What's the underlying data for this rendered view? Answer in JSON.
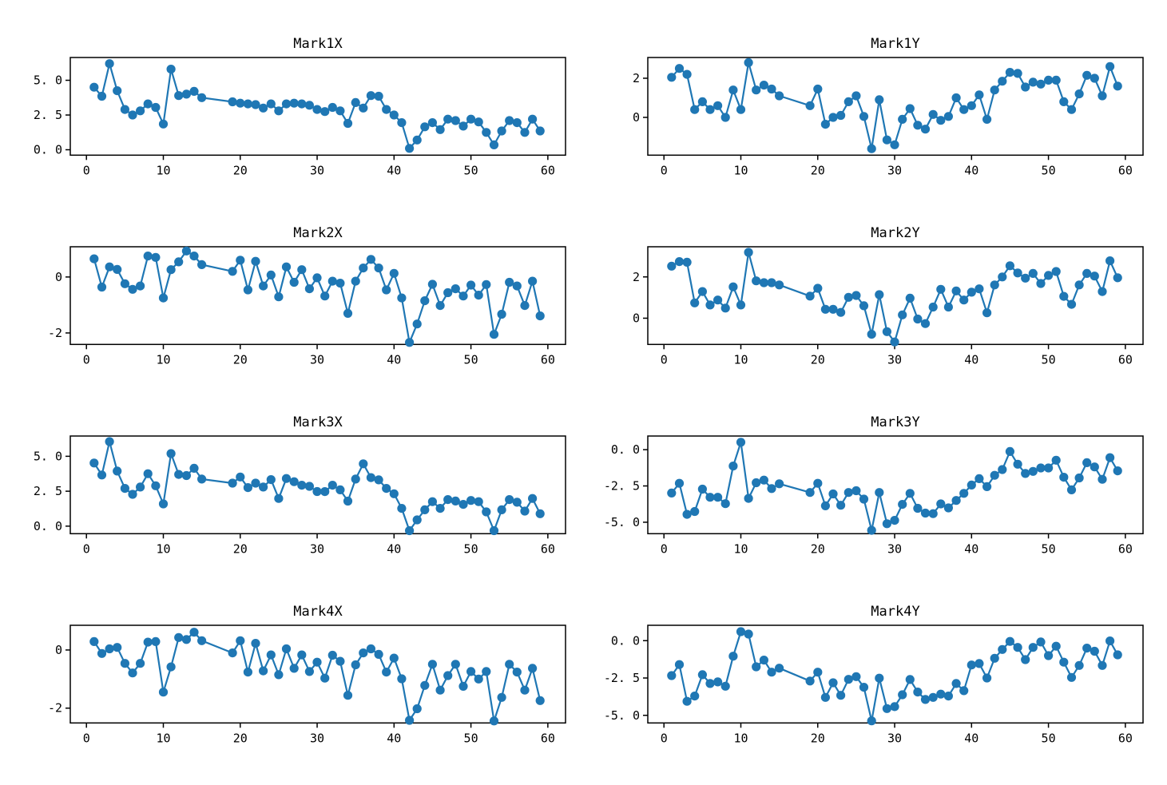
{
  "figure": {
    "background": "#ffffff",
    "line_color": "#1f77b4",
    "axis_color": "#000000",
    "text_color": "#000000"
  },
  "chart_data": [
    {
      "type": "line",
      "title": "Mark1X",
      "xlabel": "",
      "ylabel": "",
      "grid": false,
      "legend": null,
      "marker": "circle",
      "x": [
        1,
        2,
        3,
        4,
        5,
        6,
        7,
        8,
        9,
        10,
        11,
        12,
        13,
        14,
        15,
        19,
        20,
        21,
        22,
        23,
        24,
        25,
        26,
        27,
        28,
        29,
        30,
        31,
        32,
        33,
        34,
        35,
        36,
        37,
        38,
        39,
        40,
        41,
        42,
        43,
        44,
        45,
        46,
        47,
        48,
        49,
        50,
        51,
        52,
        53,
        54,
        55,
        56,
        57,
        58,
        59
      ],
      "y": [
        4.5,
        3.85,
        6.2,
        4.25,
        2.9,
        2.5,
        2.8,
        3.3,
        3.05,
        1.85,
        5.8,
        3.9,
        4.0,
        4.2,
        3.75,
        3.45,
        3.35,
        3.3,
        3.25,
        3.0,
        3.3,
        2.8,
        3.3,
        3.35,
        3.3,
        3.2,
        2.9,
        2.75,
        3.05,
        2.8,
        1.9,
        3.4,
        3.0,
        3.9,
        3.85,
        2.9,
        2.5,
        1.95,
        0.1,
        0.7,
        1.65,
        1.95,
        1.45,
        2.2,
        2.1,
        1.7,
        2.2,
        2.0,
        1.25,
        0.35,
        1.35,
        2.1,
        1.95,
        1.25,
        2.2,
        1.35
      ],
      "xlim": [
        -2.1,
        62.3
      ],
      "ylim": [
        -0.39,
        6.64
      ],
      "xticks": [
        0,
        10,
        20,
        30,
        40,
        50,
        60
      ],
      "xtick_labels": [
        "0",
        "10",
        "20",
        "30",
        "40",
        "50",
        "60"
      ],
      "yticks": [
        0,
        2.5,
        5
      ],
      "ytick_labels": [
        "0. 0",
        "2. 5",
        "5. 0"
      ]
    },
    {
      "type": "line",
      "title": "Mark1Y",
      "xlabel": "",
      "ylabel": "",
      "grid": false,
      "legend": null,
      "marker": "circle",
      "x": [
        1,
        2,
        3,
        4,
        5,
        6,
        7,
        8,
        9,
        10,
        11,
        12,
        13,
        14,
        15,
        19,
        20,
        21,
        22,
        23,
        24,
        25,
        26,
        27,
        28,
        29,
        30,
        31,
        32,
        33,
        34,
        35,
        36,
        37,
        38,
        39,
        40,
        41,
        42,
        43,
        44,
        45,
        46,
        47,
        48,
        49,
        50,
        51,
        52,
        53,
        54,
        55,
        56,
        57,
        58,
        59
      ],
      "y": [
        2.05,
        2.5,
        2.2,
        0.4,
        0.8,
        0.4,
        0.6,
        0.0,
        1.4,
        0.4,
        2.8,
        1.4,
        1.65,
        1.45,
        1.1,
        0.6,
        1.45,
        -0.35,
        0.0,
        0.1,
        0.8,
        1.1,
        0.05,
        -1.6,
        0.9,
        -1.15,
        -1.4,
        -0.1,
        0.45,
        -0.4,
        -0.6,
        0.15,
        -0.15,
        0.05,
        1.0,
        0.4,
        0.6,
        1.15,
        -0.1,
        1.4,
        1.85,
        2.3,
        2.25,
        1.55,
        1.8,
        1.7,
        1.9,
        1.9,
        0.8,
        0.4,
        1.2,
        2.15,
        2.0,
        1.1,
        2.6,
        1.6
      ],
      "xlim": [
        -2.1,
        62.3
      ],
      "ylim": [
        -1.93,
        3.06
      ],
      "xticks": [
        0,
        10,
        20,
        30,
        40,
        50,
        60
      ],
      "xtick_labels": [
        "0",
        "10",
        "20",
        "30",
        "40",
        "50",
        "60"
      ],
      "yticks": [
        0,
        2
      ],
      "ytick_labels": [
        "0",
        "2"
      ]
    },
    {
      "type": "line",
      "title": "Mark2X",
      "xlabel": "",
      "ylabel": "",
      "grid": false,
      "legend": null,
      "marker": "circle",
      "x": [
        1,
        2,
        3,
        4,
        5,
        6,
        7,
        8,
        9,
        10,
        11,
        12,
        13,
        14,
        15,
        19,
        20,
        21,
        22,
        23,
        24,
        25,
        26,
        27,
        28,
        29,
        30,
        31,
        32,
        33,
        34,
        35,
        36,
        37,
        38,
        39,
        40,
        41,
        42,
        43,
        44,
        45,
        46,
        47,
        48,
        49,
        50,
        51,
        52,
        53,
        54,
        55,
        56,
        57,
        58,
        59
      ],
      "y": [
        0.65,
        -0.36,
        0.36,
        0.27,
        -0.24,
        -0.44,
        -0.32,
        0.75,
        0.7,
        -0.75,
        0.26,
        0.54,
        0.93,
        0.75,
        0.44,
        0.2,
        0.6,
        -0.46,
        0.56,
        -0.32,
        0.07,
        -0.71,
        0.36,
        -0.19,
        0.26,
        -0.42,
        -0.03,
        -0.68,
        -0.15,
        -0.22,
        -1.3,
        -0.15,
        0.32,
        0.63,
        0.32,
        -0.46,
        0.13,
        -0.75,
        -2.34,
        -1.68,
        -0.85,
        -0.26,
        -1.02,
        -0.56,
        -0.42,
        -0.68,
        -0.29,
        -0.65,
        -0.27,
        -2.05,
        -1.33,
        -0.19,
        -0.32,
        -1.02,
        -0.15,
        -1.39
      ],
      "xlim": [
        -2.1,
        62.3
      ],
      "ylim": [
        -2.41,
        1.08
      ],
      "xticks": [
        0,
        10,
        20,
        30,
        40,
        50,
        60
      ],
      "xtick_labels": [
        "0",
        "10",
        "20",
        "30",
        "40",
        "50",
        "60"
      ],
      "yticks": [
        -2,
        0
      ],
      "ytick_labels": [
        "-2",
        "0"
      ]
    },
    {
      "type": "line",
      "title": "Mark2Y",
      "xlabel": "",
      "ylabel": "",
      "grid": false,
      "legend": null,
      "marker": "circle",
      "x": [
        1,
        2,
        3,
        4,
        5,
        6,
        7,
        8,
        9,
        10,
        11,
        12,
        13,
        14,
        15,
        19,
        20,
        21,
        22,
        23,
        24,
        25,
        26,
        27,
        28,
        29,
        30,
        31,
        32,
        33,
        34,
        35,
        36,
        37,
        38,
        39,
        40,
        41,
        42,
        43,
        44,
        45,
        46,
        47,
        48,
        49,
        50,
        51,
        52,
        53,
        54,
        55,
        56,
        57,
        58,
        59
      ],
      "y": [
        2.52,
        2.74,
        2.71,
        0.74,
        1.29,
        0.64,
        0.88,
        0.49,
        1.52,
        0.64,
        3.19,
        1.81,
        1.72,
        1.72,
        1.61,
        1.07,
        1.45,
        0.43,
        0.43,
        0.28,
        1.01,
        1.1,
        0.6,
        -0.78,
        1.14,
        -0.65,
        -1.15,
        0.16,
        0.97,
        -0.04,
        -0.26,
        0.54,
        1.4,
        0.54,
        1.32,
        0.88,
        1.26,
        1.42,
        0.26,
        1.61,
        2.0,
        2.54,
        2.19,
        1.94,
        2.17,
        1.68,
        2.07,
        2.26,
        1.06,
        0.67,
        1.61,
        2.17,
        2.04,
        1.29,
        2.78,
        1.96
      ],
      "xlim": [
        -2.1,
        62.3
      ],
      "ylim": [
        -1.27,
        3.46
      ],
      "xticks": [
        0,
        10,
        20,
        30,
        40,
        50,
        60
      ],
      "xtick_labels": [
        "0",
        "10",
        "20",
        "30",
        "40",
        "50",
        "60"
      ],
      "yticks": [
        0,
        2
      ],
      "ytick_labels": [
        "0",
        "2"
      ]
    },
    {
      "type": "line",
      "title": "Mark3X",
      "xlabel": "",
      "ylabel": "",
      "grid": false,
      "legend": null,
      "marker": "circle",
      "x": [
        1,
        2,
        3,
        4,
        5,
        6,
        7,
        8,
        9,
        10,
        11,
        12,
        13,
        14,
        15,
        19,
        20,
        21,
        22,
        23,
        24,
        25,
        26,
        27,
        28,
        29,
        30,
        31,
        32,
        33,
        34,
        35,
        36,
        37,
        38,
        39,
        40,
        41,
        42,
        43,
        44,
        45,
        46,
        47,
        48,
        49,
        50,
        51,
        52,
        53,
        54,
        55,
        56,
        57,
        58,
        59
      ],
      "y": [
        4.52,
        3.66,
        6.05,
        3.94,
        2.7,
        2.28,
        2.8,
        3.75,
        2.89,
        1.59,
        5.19,
        3.7,
        3.62,
        4.14,
        3.37,
        3.08,
        3.52,
        2.76,
        3.08,
        2.8,
        3.33,
        1.98,
        3.41,
        3.18,
        2.93,
        2.85,
        2.48,
        2.47,
        2.93,
        2.6,
        1.79,
        3.37,
        4.46,
        3.47,
        3.31,
        2.7,
        2.32,
        1.27,
        -0.32,
        0.45,
        1.17,
        1.75,
        1.27,
        1.9,
        1.8,
        1.56,
        1.84,
        1.75,
        1.02,
        -0.32,
        1.17,
        1.9,
        1.71,
        1.08,
        1.98,
        0.89
      ],
      "xlim": [
        -2.1,
        62.3
      ],
      "ylim": [
        -0.54,
        6.45
      ],
      "xticks": [
        0,
        10,
        20,
        30,
        40,
        50,
        60
      ],
      "xtick_labels": [
        "0",
        "10",
        "20",
        "30",
        "40",
        "50",
        "60"
      ],
      "yticks": [
        0,
        2.5,
        5
      ],
      "ytick_labels": [
        "0. 0",
        "2. 5",
        "5. 0"
      ]
    },
    {
      "type": "line",
      "title": "Mark3Y",
      "xlabel": "",
      "ylabel": "",
      "grid": false,
      "legend": null,
      "marker": "circle",
      "x": [
        1,
        2,
        3,
        4,
        5,
        6,
        7,
        8,
        9,
        10,
        11,
        12,
        13,
        14,
        15,
        19,
        20,
        21,
        22,
        23,
        24,
        25,
        26,
        27,
        28,
        29,
        30,
        31,
        32,
        33,
        34,
        35,
        36,
        37,
        38,
        39,
        40,
        41,
        42,
        43,
        44,
        45,
        46,
        47,
        48,
        49,
        50,
        51,
        52,
        53,
        54,
        55,
        56,
        57,
        58,
        59
      ],
      "y": [
        -2.99,
        -2.32,
        -4.46,
        -4.26,
        -2.72,
        -3.28,
        -3.28,
        -3.72,
        -1.13,
        0.51,
        -3.36,
        -2.28,
        -2.1,
        -2.68,
        -2.35,
        -2.95,
        -2.32,
        -3.87,
        -3.05,
        -3.83,
        -2.95,
        -2.83,
        -3.41,
        -5.56,
        -2.95,
        -5.1,
        -4.87,
        -3.77,
        -3.01,
        -4.04,
        -4.37,
        -4.41,
        -3.74,
        -4.01,
        -3.5,
        -3.01,
        -2.44,
        -2.0,
        -2.55,
        -1.77,
        -1.37,
        -0.13,
        -1.0,
        -1.64,
        -1.5,
        -1.26,
        -1.26,
        -0.73,
        -1.9,
        -2.77,
        -1.95,
        -0.9,
        -1.19,
        -2.04,
        -0.55,
        -1.46
      ],
      "xlim": [
        -2.1,
        62.3
      ],
      "ylim": [
        -5.79,
        0.94
      ],
      "xticks": [
        0,
        10,
        20,
        30,
        40,
        50,
        60
      ],
      "xtick_labels": [
        "0",
        "10",
        "20",
        "30",
        "40",
        "50",
        "60"
      ],
      "yticks": [
        -5,
        -2.5,
        0
      ],
      "ytick_labels": [
        "-5. 0",
        "-2. 5",
        "0. 0"
      ]
    },
    {
      "type": "line",
      "title": "Mark4X",
      "xlabel": "",
      "ylabel": "",
      "grid": false,
      "legend": null,
      "marker": "circle",
      "x": [
        1,
        2,
        3,
        4,
        5,
        6,
        7,
        8,
        9,
        10,
        11,
        12,
        13,
        14,
        15,
        19,
        20,
        21,
        22,
        23,
        24,
        25,
        26,
        27,
        28,
        29,
        30,
        31,
        32,
        33,
        34,
        35,
        36,
        37,
        38,
        39,
        40,
        41,
        42,
        43,
        44,
        45,
        46,
        47,
        48,
        49,
        50,
        51,
        52,
        53,
        54,
        55,
        56,
        57,
        58,
        59
      ],
      "y": [
        0.29,
        -0.12,
        0.04,
        0.09,
        -0.46,
        -0.79,
        -0.46,
        0.27,
        0.29,
        -1.45,
        -0.58,
        0.43,
        0.36,
        0.61,
        0.32,
        -0.1,
        0.32,
        -0.76,
        0.23,
        -0.72,
        -0.17,
        -0.85,
        0.04,
        -0.63,
        -0.17,
        -0.74,
        -0.42,
        -0.97,
        -0.18,
        -0.39,
        -1.56,
        -0.51,
        -0.1,
        0.04,
        -0.15,
        -0.76,
        -0.28,
        -0.99,
        -2.42,
        -2.02,
        -1.22,
        -0.49,
        -1.38,
        -0.88,
        -0.49,
        -1.25,
        -0.74,
        -1.0,
        -0.74,
        -2.44,
        -1.63,
        -0.49,
        -0.76,
        -1.38,
        -0.63,
        -1.74
      ],
      "xlim": [
        -2.1,
        62.3
      ],
      "ylim": [
        -2.51,
        0.85
      ],
      "xticks": [
        0,
        10,
        20,
        30,
        40,
        50,
        60
      ],
      "xtick_labels": [
        "0",
        "10",
        "20",
        "30",
        "40",
        "50",
        "60"
      ],
      "yticks": [
        -2,
        0
      ],
      "ytick_labels": [
        "-2",
        "0"
      ]
    },
    {
      "type": "line",
      "title": "Mark4Y",
      "xlabel": "",
      "ylabel": "",
      "grid": false,
      "legend": null,
      "marker": "circle",
      "x": [
        1,
        2,
        3,
        4,
        5,
        6,
        7,
        8,
        9,
        10,
        11,
        12,
        13,
        14,
        15,
        19,
        20,
        21,
        22,
        23,
        24,
        25,
        26,
        27,
        28,
        29,
        30,
        31,
        32,
        33,
        34,
        35,
        36,
        37,
        38,
        39,
        40,
        41,
        42,
        43,
        44,
        45,
        46,
        47,
        48,
        49,
        50,
        51,
        52,
        53,
        54,
        55,
        56,
        57,
        58,
        59
      ],
      "y": [
        -2.34,
        -1.6,
        -4.06,
        -3.71,
        -2.28,
        -2.87,
        -2.76,
        -3.05,
        -1.04,
        0.6,
        0.44,
        -1.75,
        -1.3,
        -2.11,
        -1.84,
        -2.7,
        -2.11,
        -3.8,
        -2.82,
        -3.66,
        -2.59,
        -2.41,
        -3.12,
        -5.37,
        -2.51,
        -4.55,
        -4.42,
        -3.62,
        -2.6,
        -3.44,
        -3.94,
        -3.8,
        -3.58,
        -3.71,
        -2.87,
        -3.35,
        -1.63,
        -1.53,
        -2.5,
        -1.18,
        -0.59,
        -0.05,
        -0.45,
        -1.27,
        -0.45,
        -0.09,
        -1.0,
        -0.37,
        -1.44,
        -2.46,
        -1.66,
        -0.5,
        -0.71,
        -1.66,
        -0.02,
        -0.95
      ],
      "xlim": [
        -2.1,
        62.3
      ],
      "ylim": [
        -5.51,
        1.03
      ],
      "xticks": [
        0,
        10,
        20,
        30,
        40,
        50,
        60
      ],
      "xtick_labels": [
        "0",
        "10",
        "20",
        "30",
        "40",
        "50",
        "60"
      ],
      "yticks": [
        -5,
        -2.5,
        0
      ],
      "ytick_labels": [
        "-5. 0",
        "-2. 5",
        "0. 0"
      ]
    }
  ]
}
